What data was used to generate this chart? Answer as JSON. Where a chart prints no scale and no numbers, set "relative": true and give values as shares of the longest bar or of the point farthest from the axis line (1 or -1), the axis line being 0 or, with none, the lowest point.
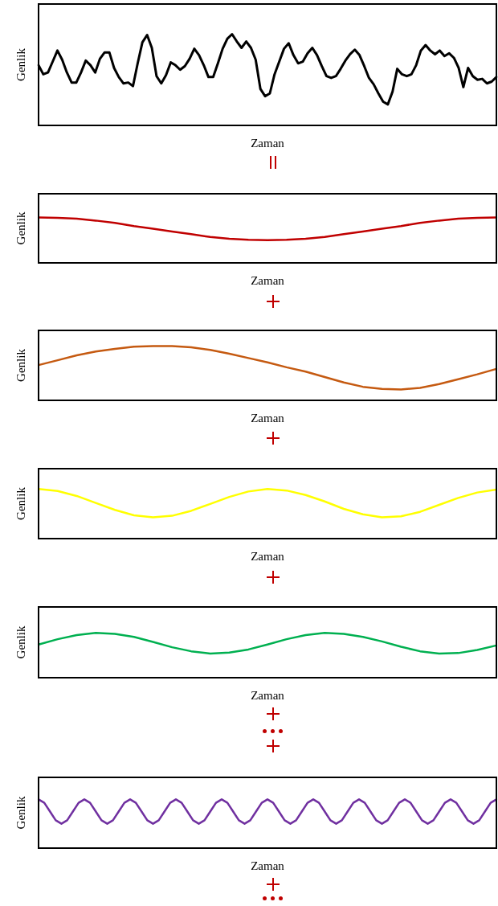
{
  "chart_data": [
    {
      "type": "line",
      "relative": true,
      "xlabel": "Zaman",
      "ylabel": "Genlik",
      "color": "#000000",
      "categories": [
        null,
        null,
        null,
        null,
        null,
        null,
        null,
        null,
        null,
        null,
        null,
        null,
        null,
        null,
        null,
        null,
        null,
        null,
        null,
        null,
        null,
        null,
        null,
        null,
        null,
        null,
        null,
        null,
        null,
        null,
        null,
        null,
        null,
        null,
        null,
        null,
        null,
        null,
        null,
        null,
        null,
        null,
        null,
        null,
        null,
        null,
        null,
        null,
        null,
        null,
        null,
        null,
        null,
        null,
        null,
        null,
        null,
        null,
        null,
        null,
        null,
        null,
        null,
        null,
        null,
        null,
        null,
        null,
        null,
        null,
        null,
        null,
        null,
        null,
        null,
        null,
        null,
        null,
        null,
        null,
        null,
        null,
        null,
        null,
        null,
        null,
        null,
        null,
        null,
        null,
        null,
        null,
        null,
        null,
        null,
        null,
        null,
        null
      ],
      "values": [
        0.66,
        0.56,
        0.58,
        0.7,
        0.82,
        0.72,
        0.58,
        0.47,
        0.47,
        0.58,
        0.71,
        0.66,
        0.58,
        0.73,
        0.8,
        0.8,
        0.63,
        0.53,
        0.46,
        0.47,
        0.43,
        0.68,
        0.91,
        0.99,
        0.85,
        0.54,
        0.46,
        0.55,
        0.69,
        0.66,
        0.61,
        0.65,
        0.73,
        0.84,
        0.77,
        0.66,
        0.53,
        0.53,
        0.68,
        0.84,
        0.95,
        1,
        0.92,
        0.85,
        0.92,
        0.85,
        0.72,
        0.4,
        0.32,
        0.35,
        0.56,
        0.7,
        0.84,
        0.9,
        0.77,
        0.68,
        0.7,
        0.79,
        0.85,
        0.77,
        0.65,
        0.54,
        0.52,
        0.54,
        0.62,
        0.71,
        0.78,
        0.83,
        0.77,
        0.65,
        0.52,
        0.45,
        0.35,
        0.26,
        0.23,
        0.37,
        0.62,
        0.56,
        0.54,
        0.56,
        0.66,
        0.82,
        0.88,
        0.82,
        0.78,
        0.82,
        0.76,
        0.79,
        0.74,
        0.63,
        0.42,
        0.63,
        0.54,
        0.5,
        0.51,
        0.46,
        0.48,
        0.53
      ]
    },
    {
      "type": "line",
      "relative": true,
      "xlabel": "Zaman",
      "ylabel": "Genlik",
      "color": "#c00000",
      "categories": [
        null,
        null,
        null,
        null,
        null,
        null,
        null,
        null,
        null,
        null,
        null,
        null,
        null,
        null,
        null,
        null,
        null,
        null,
        null,
        null,
        null,
        null,
        null,
        null,
        null
      ],
      "values": [
        1,
        0.99,
        0.97,
        0.93,
        0.88,
        0.81,
        0.75,
        0.69,
        0.63,
        0.57,
        0.53,
        0.51,
        0.5,
        0.51,
        0.53,
        0.57,
        0.63,
        0.69,
        0.75,
        0.81,
        0.88,
        0.93,
        0.97,
        0.99,
        1
      ]
    },
    {
      "type": "line",
      "relative": true,
      "xlabel": "Zaman",
      "ylabel": "Genlik",
      "color": "#c55a11",
      "categories": [
        null,
        null,
        null,
        null,
        null,
        null,
        null,
        null,
        null,
        null,
        null,
        null,
        null,
        null,
        null,
        null,
        null,
        null,
        null,
        null,
        null,
        null,
        null,
        null,
        null
      ],
      "values": [
        0.65,
        0.74,
        0.83,
        0.9,
        0.95,
        0.99,
        1,
        1,
        0.98,
        0.93,
        0.86,
        0.78,
        0.7,
        0.61,
        0.53,
        0.43,
        0.33,
        0.25,
        0.21,
        0.2,
        0.23,
        0.3,
        0.39,
        0.48,
        0.58
      ]
    },
    {
      "type": "line",
      "relative": true,
      "xlabel": "Zaman",
      "ylabel": "Genlik",
      "color": "#ffff00",
      "categories": [
        null,
        null,
        null,
        null,
        null,
        null,
        null,
        null,
        null,
        null,
        null,
        null,
        null,
        null,
        null,
        null,
        null,
        null,
        null,
        null,
        null,
        null,
        null,
        null,
        null
      ],
      "values": [
        1,
        0.96,
        0.86,
        0.72,
        0.58,
        0.47,
        0.43,
        0.46,
        0.56,
        0.7,
        0.84,
        0.95,
        1,
        0.97,
        0.88,
        0.75,
        0.6,
        0.49,
        0.43,
        0.45,
        0.54,
        0.68,
        0.82,
        0.93,
        0.99
      ]
    },
    {
      "type": "line",
      "relative": true,
      "xlabel": "Zaman",
      "ylabel": "Genlik",
      "color": "#00b050",
      "categories": [
        null,
        null,
        null,
        null,
        null,
        null,
        null,
        null,
        null,
        null,
        null,
        null,
        null,
        null,
        null,
        null,
        null,
        null,
        null,
        null,
        null,
        null,
        null,
        null,
        null
      ],
      "values": [
        0.74,
        0.86,
        0.95,
        1,
        0.98,
        0.91,
        0.8,
        0.68,
        0.59,
        0.54,
        0.56,
        0.63,
        0.74,
        0.86,
        0.95,
        1,
        0.98,
        0.91,
        0.81,
        0.69,
        0.59,
        0.54,
        0.55,
        0.62,
        0.72
      ]
    },
    {
      "type": "line",
      "relative": true,
      "xlabel": "Zaman",
      "ylabel": "Genlik",
      "color": "#7030a0",
      "categories": [
        null,
        null,
        null,
        null,
        null,
        null,
        null,
        null,
        null,
        null,
        null,
        null,
        null,
        null,
        null,
        null,
        null,
        null,
        null,
        null,
        null,
        null,
        null,
        null,
        null,
        null,
        null,
        null,
        null,
        null,
        null,
        null,
        null,
        null,
        null,
        null,
        null,
        null,
        null,
        null,
        null,
        null,
        null,
        null,
        null,
        null,
        null,
        null,
        null,
        null,
        null,
        null,
        null,
        null,
        null,
        null,
        null,
        null,
        null,
        null,
        null,
        null,
        null,
        null,
        null,
        null,
        null,
        null,
        null,
        null,
        null,
        null,
        null,
        null,
        null,
        null,
        null,
        null,
        null,
        null,
        null
      ],
      "values": [
        1,
        0.93,
        0.75,
        0.57,
        0.5,
        0.57,
        0.75,
        0.93,
        1,
        0.93,
        0.75,
        0.57,
        0.5,
        0.57,
        0.75,
        0.93,
        1,
        0.93,
        0.75,
        0.57,
        0.5,
        0.57,
        0.75,
        0.93,
        1,
        0.93,
        0.75,
        0.57,
        0.5,
        0.57,
        0.75,
        0.93,
        1,
        0.93,
        0.75,
        0.57,
        0.5,
        0.57,
        0.75,
        0.93,
        1,
        0.93,
        0.75,
        0.57,
        0.5,
        0.57,
        0.75,
        0.93,
        1,
        0.93,
        0.75,
        0.57,
        0.5,
        0.57,
        0.75,
        0.93,
        1,
        0.93,
        0.75,
        0.57,
        0.5,
        0.57,
        0.75,
        0.93,
        1,
        0.93,
        0.75,
        0.57,
        0.5,
        0.57,
        0.75,
        0.93,
        1,
        0.93,
        0.75,
        0.57,
        0.5,
        0.57,
        0.75,
        0.93,
        1
      ]
    }
  ]
}
